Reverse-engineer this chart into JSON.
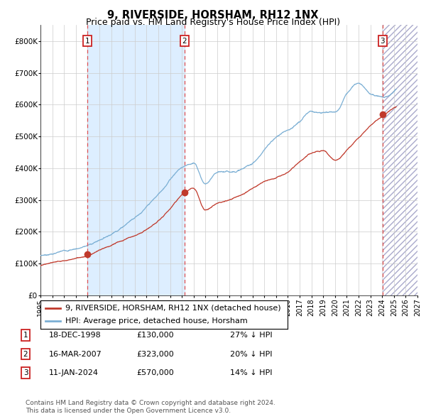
{
  "title": "9, RIVERSIDE, HORSHAM, RH12 1NX",
  "subtitle": "Price paid vs. HM Land Registry's House Price Index (HPI)",
  "x_start_year": 1995,
  "x_end_year": 2027,
  "ylim": [
    0,
    850000
  ],
  "yticks": [
    0,
    100000,
    200000,
    300000,
    400000,
    500000,
    600000,
    700000,
    800000
  ],
  "ytick_labels": [
    "£0",
    "£100K",
    "£200K",
    "£300K",
    "£400K",
    "£500K",
    "£600K",
    "£700K",
    "£800K"
  ],
  "hpi_color": "#7bafd4",
  "price_color": "#c0392b",
  "vline_color": "#e05050",
  "shade_color": "#ddeeff",
  "sales": [
    {
      "label": "1",
      "date_str": "18-DEC-1998",
      "year": 1998.96,
      "price": 130000,
      "hpi_pct": "27% ↓ HPI"
    },
    {
      "label": "2",
      "date_str": "16-MAR-2007",
      "year": 2007.21,
      "price": 323000,
      "hpi_pct": "20% ↓ HPI"
    },
    {
      "label": "3",
      "date_str": "11-JAN-2024",
      "year": 2024.03,
      "price": 570000,
      "hpi_pct": "14% ↓ HPI"
    }
  ],
  "legend_entries": [
    "9, RIVERSIDE, HORSHAM, RH12 1NX (detached house)",
    "HPI: Average price, detached house, Horsham"
  ],
  "footer_line1": "Contains HM Land Registry data © Crown copyright and database right 2024.",
  "footer_line2": "This data is licensed under the Open Government Licence v3.0.",
  "title_fontsize": 10.5,
  "subtitle_fontsize": 9,
  "axis_fontsize": 7.5,
  "legend_fontsize": 8,
  "footer_fontsize": 6.5,
  "hpi_knots_year": [
    1995,
    1997,
    1999,
    2001,
    2003,
    2005,
    2007,
    2008,
    2009,
    2010,
    2011,
    2012,
    2013,
    2014,
    2015,
    2016,
    2017,
    2018,
    2019,
    2020,
    2021,
    2022,
    2023,
    2024,
    2025
  ],
  "hpi_knots_val": [
    125000,
    140000,
    160000,
    200000,
    260000,
    330000,
    420000,
    435000,
    370000,
    400000,
    400000,
    410000,
    430000,
    470000,
    510000,
    535000,
    560000,
    590000,
    590000,
    590000,
    650000,
    690000,
    660000,
    650000,
    670000
  ],
  "price_knots_year": [
    1995,
    1997,
    1998.96,
    2001,
    2003,
    2005,
    2007.21,
    2008,
    2009,
    2010,
    2012,
    2014,
    2016,
    2018,
    2019,
    2020,
    2021,
    2022,
    2023,
    2024.03,
    2025
  ],
  "price_knots_val": [
    93000,
    110000,
    130000,
    160000,
    195000,
    240000,
    323000,
    340000,
    275000,
    295000,
    325000,
    360000,
    390000,
    450000,
    460000,
    430000,
    460000,
    500000,
    540000,
    570000,
    595000
  ]
}
